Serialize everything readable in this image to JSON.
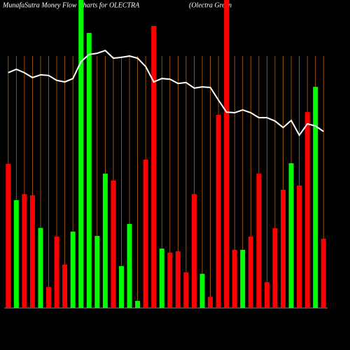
{
  "chart_data": {
    "type": "bar",
    "title": "MunafaSutra  Money Flow  Charts for OLECTRA",
    "subtitle": "(Olectra  Green",
    "ylim": [
      0,
      100
    ],
    "values": [
      46.8,
      35,
      37,
      36.6,
      26,
      6.8,
      23.2,
      14.1,
      24.8,
      100,
      89.3,
      23.4,
      43.6,
      41.4,
      13.6,
      27.3,
      2.3,
      48.2,
      91.6,
      19.3,
      18,
      18.4,
      11.6,
      37,
      11.1,
      3.6,
      62.7,
      100,
      18.9,
      18.9,
      23.2,
      43.6,
      8.4,
      25.9,
      38.4,
      47,
      39.8,
      63.6,
      71.8,
      22.5
    ],
    "colors": [
      "#ff0000",
      "#00ff00",
      "#ff0000",
      "#ff0000",
      "#00ff00",
      "#ff0000",
      "#ff0000",
      "#ff0000",
      "#00ff00",
      "#00ff00",
      "#00ff00",
      "#00ff00",
      "#00ff00",
      "#ff0000",
      "#00ff00",
      "#00ff00",
      "#00ff00",
      "#ff0000",
      "#ff0000",
      "#00ff00",
      "#ff0000",
      "#ff0000",
      "#ff0000",
      "#ff0000",
      "#00ff00",
      "#ff0000",
      "#ff0000",
      "#ff0000",
      "#ff0000",
      "#00ff00",
      "#ff0000",
      "#ff0000",
      "#ff0000",
      "#ff0000",
      "#ff0000",
      "#00ff00",
      "#ff0000",
      "#ff0000",
      "#00ff00",
      "#ff0000"
    ],
    "line": {
      "color": "#ffffff",
      "values": [
        76.4,
        77.5,
        76.4,
        74.8,
        75.7,
        75.5,
        73.9,
        73.4,
        74.5,
        80,
        82.3,
        82.7,
        83.6,
        81.1,
        81.4,
        81.8,
        81.1,
        78.4,
        73.4,
        74.5,
        74.3,
        72.9,
        73.2,
        71.4,
        71.8,
        71.6,
        67.5,
        63.6,
        63.4,
        64.3,
        63.4,
        61.8,
        61.8,
        60.7,
        58.6,
        60.9,
        56.1,
        59.8,
        59.1,
        57.3
      ]
    },
    "grid_color": "#b8640a"
  }
}
